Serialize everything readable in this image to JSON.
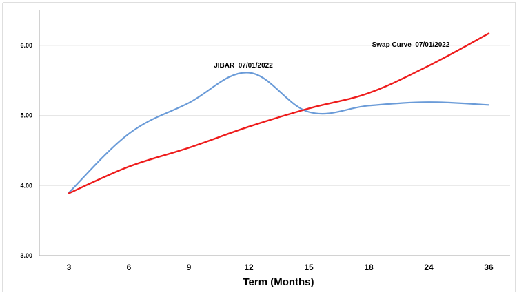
{
  "chart_data": {
    "type": "line",
    "title": "",
    "xlabel": "Term (Months)",
    "ylabel": "",
    "categories": [
      "3",
      "6",
      "9",
      "12",
      "15",
      "18",
      "24",
      "36"
    ],
    "ylim": [
      3.0,
      6.5
    ],
    "yticks": [
      "3.00",
      "4.00",
      "5.00",
      "6.00"
    ],
    "grid": "horizontal",
    "legend": "none",
    "series": [
      {
        "name": "JIBAR  07/01/2022",
        "color": "#6a9bd8",
        "values": [
          3.9,
          4.74,
          5.18,
          5.61,
          5.05,
          5.14,
          5.19,
          5.15
        ]
      },
      {
        "name": "Swap Curve  07/01/2022",
        "color": "#ee1c1c",
        "values": [
          3.89,
          4.27,
          4.54,
          4.84,
          5.1,
          5.32,
          5.71,
          6.17
        ]
      }
    ]
  }
}
